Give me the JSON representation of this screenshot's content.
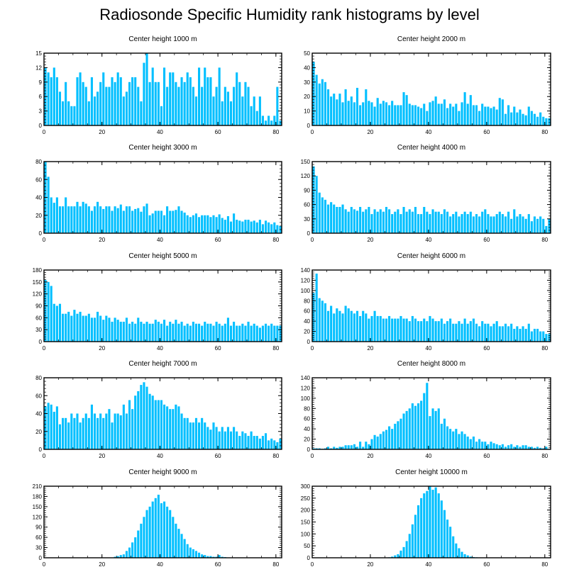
{
  "title": "Radiosonde Specific Humidity rank histograms by level",
  "colors": {
    "bar": "#00BFFF",
    "axis": "#000000",
    "background": "#FFFFFF"
  },
  "chart_data": [
    {
      "type": "bar",
      "title": "Center height 1000 m",
      "xticks": [
        0,
        20,
        40,
        60,
        80
      ],
      "yticks": [
        0,
        3,
        6,
        9,
        12,
        15
      ],
      "xlim": [
        0,
        82
      ],
      "ylim": [
        0,
        15
      ],
      "categories_start": 1,
      "values": [
        12,
        11,
        10,
        12,
        10,
        7,
        5,
        9,
        5,
        4,
        4,
        10,
        11,
        9,
        8,
        5,
        10,
        6,
        7,
        9,
        11,
        8,
        8,
        10,
        9,
        11,
        10,
        6,
        7,
        9,
        10,
        10,
        8,
        5,
        13,
        15,
        9,
        12,
        9,
        9,
        4,
        12,
        8,
        11,
        11,
        9,
        8,
        10,
        9,
        11,
        10,
        8,
        6,
        12,
        8,
        12,
        10,
        10,
        6,
        8,
        12,
        5,
        8,
        7,
        5,
        8,
        11,
        9,
        6,
        9,
        8,
        4,
        6,
        3,
        6,
        2,
        1,
        2,
        1,
        2,
        8,
        1
      ]
    },
    {
      "type": "bar",
      "title": "Center height 2000 m",
      "xticks": [
        0,
        20,
        40,
        60,
        80
      ],
      "yticks": [
        0,
        10,
        20,
        30,
        40,
        50
      ],
      "xlim": [
        0,
        82
      ],
      "ylim": [
        0,
        50
      ],
      "categories_start": 1,
      "values": [
        44,
        35,
        29,
        32,
        30,
        25,
        20,
        22,
        18,
        22,
        16,
        25,
        17,
        20,
        16,
        26,
        14,
        16,
        25,
        17,
        16,
        13,
        19,
        15,
        17,
        16,
        14,
        17,
        14,
        14,
        14,
        23,
        21,
        15,
        14,
        14,
        13,
        12,
        15,
        10,
        16,
        17,
        20,
        15,
        15,
        18,
        12,
        15,
        13,
        15,
        10,
        16,
        23,
        15,
        21,
        14,
        14,
        10,
        15,
        13,
        13,
        12,
        13,
        11,
        19,
        18,
        8,
        14,
        9,
        13,
        9,
        11,
        8,
        7,
        13,
        10,
        8,
        6,
        9,
        6,
        5,
        5
      ]
    },
    {
      "type": "bar",
      "title": "Center height 3000 m",
      "xticks": [
        0,
        20,
        40,
        60,
        80
      ],
      "yticks": [
        0,
        20,
        40,
        60,
        80
      ],
      "xlim": [
        0,
        82
      ],
      "ylim": [
        0,
        80
      ],
      "categories_start": 1,
      "values": [
        80,
        63,
        40,
        34,
        40,
        30,
        30,
        40,
        30,
        30,
        30,
        35,
        30,
        35,
        33,
        30,
        25,
        30,
        35,
        30,
        27,
        30,
        30,
        25,
        30,
        28,
        32,
        25,
        30,
        30,
        25,
        27,
        28,
        24,
        30,
        33,
        20,
        22,
        25,
        25,
        25,
        20,
        30,
        25,
        25,
        26,
        30,
        25,
        23,
        20,
        18,
        20,
        22,
        18,
        20,
        20,
        20,
        18,
        20,
        18,
        21,
        17,
        15,
        19,
        13,
        22,
        15,
        14,
        13,
        15,
        15,
        13,
        14,
        12,
        15,
        10,
        14,
        12,
        10,
        12,
        9,
        8
      ]
    },
    {
      "type": "bar",
      "title": "Center height 4000 m",
      "xticks": [
        0,
        20,
        40,
        60,
        80
      ],
      "yticks": [
        0,
        30,
        60,
        90,
        120,
        150
      ],
      "xlim": [
        0,
        82
      ],
      "ylim": [
        0,
        150
      ],
      "categories_start": 1,
      "values": [
        140,
        120,
        85,
        75,
        70,
        60,
        65,
        60,
        55,
        55,
        60,
        50,
        45,
        55,
        50,
        47,
        55,
        45,
        50,
        55,
        40,
        50,
        45,
        50,
        45,
        55,
        50,
        40,
        45,
        50,
        40,
        55,
        45,
        50,
        45,
        55,
        40,
        40,
        55,
        45,
        40,
        50,
        45,
        45,
        40,
        50,
        45,
        35,
        40,
        45,
        35,
        40,
        45,
        40,
        45,
        35,
        40,
        35,
        45,
        50,
        40,
        35,
        35,
        40,
        45,
        40,
        35,
        45,
        30,
        50,
        35,
        40,
        35,
        30,
        40,
        25,
        35,
        30,
        35,
        30,
        15,
        30
      ]
    },
    {
      "type": "bar",
      "title": "Center height 5000 m",
      "xticks": [
        0,
        20,
        40,
        60,
        80
      ],
      "yticks": [
        0,
        30,
        60,
        90,
        120,
        150,
        180
      ],
      "xlim": [
        0,
        82
      ],
      "ylim": [
        0,
        180
      ],
      "categories_start": 1,
      "values": [
        155,
        150,
        140,
        95,
        90,
        95,
        70,
        70,
        75,
        65,
        80,
        70,
        75,
        65,
        65,
        70,
        60,
        60,
        75,
        65,
        55,
        65,
        60,
        50,
        60,
        55,
        50,
        50,
        60,
        45,
        50,
        45,
        60,
        50,
        45,
        50,
        45,
        45,
        55,
        50,
        45,
        55,
        40,
        50,
        45,
        55,
        45,
        50,
        40,
        45,
        40,
        50,
        45,
        45,
        40,
        50,
        45,
        45,
        40,
        50,
        45,
        40,
        45,
        60,
        40,
        50,
        40,
        40,
        45,
        40,
        50,
        40,
        45,
        40,
        35,
        40,
        45,
        40,
        45,
        40,
        40,
        40
      ]
    },
    {
      "type": "bar",
      "title": "Center height 6000 m",
      "xticks": [
        0,
        20,
        40,
        60,
        80
      ],
      "yticks": [
        0,
        20,
        40,
        60,
        80,
        100,
        120,
        140
      ],
      "xlim": [
        0,
        82
      ],
      "ylim": [
        0,
        140
      ],
      "categories_start": 1,
      "values": [
        95,
        133,
        85,
        80,
        75,
        60,
        70,
        55,
        65,
        60,
        55,
        70,
        65,
        60,
        55,
        60,
        50,
        60,
        55,
        45,
        50,
        60,
        50,
        50,
        45,
        45,
        50,
        45,
        45,
        45,
        50,
        45,
        45,
        40,
        50,
        45,
        40,
        40,
        45,
        40,
        50,
        45,
        40,
        40,
        45,
        35,
        40,
        45,
        35,
        35,
        40,
        35,
        45,
        35,
        40,
        45,
        35,
        30,
        40,
        35,
        35,
        30,
        35,
        40,
        30,
        30,
        35,
        30,
        35,
        25,
        30,
        25,
        30,
        25,
        35,
        20,
        25,
        25,
        20,
        20,
        15,
        15
      ]
    },
    {
      "type": "bar",
      "title": "Center height 7000 m",
      "xticks": [
        0,
        20,
        40,
        60,
        80
      ],
      "yticks": [
        0,
        20,
        40,
        60,
        80
      ],
      "xlim": [
        0,
        82
      ],
      "ylim": [
        0,
        80
      ],
      "categories_start": 1,
      "values": [
        48,
        52,
        50,
        42,
        48,
        28,
        35,
        35,
        30,
        40,
        35,
        40,
        30,
        35,
        40,
        35,
        50,
        40,
        35,
        40,
        35,
        40,
        45,
        30,
        40,
        40,
        38,
        50,
        40,
        55,
        45,
        60,
        65,
        72,
        75,
        70,
        62,
        60,
        55,
        55,
        55,
        50,
        48,
        45,
        45,
        50,
        48,
        40,
        35,
        35,
        30,
        30,
        35,
        30,
        35,
        30,
        25,
        22,
        30,
        25,
        20,
        25,
        20,
        25,
        20,
        25,
        20,
        15,
        20,
        18,
        15,
        20,
        15,
        15,
        12,
        15,
        18,
        10,
        12,
        10,
        8,
        12
      ]
    },
    {
      "type": "bar",
      "title": "Center height 8000 m",
      "xticks": [
        0,
        20,
        40,
        60,
        80
      ],
      "yticks": [
        0,
        20,
        40,
        60,
        80,
        100,
        120,
        140
      ],
      "xlim": [
        0,
        82
      ],
      "ylim": [
        0,
        140
      ],
      "categories_start": 1,
      "values": [
        2,
        2,
        2,
        1,
        2,
        5,
        2,
        5,
        3,
        5,
        5,
        8,
        8,
        8,
        10,
        5,
        15,
        5,
        15,
        10,
        20,
        28,
        25,
        30,
        35,
        38,
        45,
        40,
        50,
        55,
        60,
        70,
        75,
        80,
        90,
        85,
        90,
        95,
        110,
        130,
        65,
        80,
        75,
        80,
        50,
        60,
        45,
        40,
        35,
        40,
        30,
        35,
        30,
        25,
        20,
        25,
        15,
        20,
        15,
        15,
        10,
        15,
        12,
        10,
        8,
        10,
        5,
        8,
        10,
        5,
        8,
        5,
        8,
        8,
        5,
        5,
        3,
        5,
        3,
        2,
        5,
        1
      ]
    },
    {
      "type": "bar",
      "title": "Center height 9000 m",
      "xticks": [
        0,
        20,
        40,
        60,
        80
      ],
      "yticks": [
        0,
        30,
        60,
        90,
        120,
        150,
        180,
        210
      ],
      "xlim": [
        0,
        82
      ],
      "ylim": [
        0,
        210
      ],
      "categories_start": 1,
      "values": [
        0,
        0,
        0,
        0,
        0,
        0,
        0,
        0,
        0,
        0,
        0,
        0,
        0,
        0,
        0,
        0,
        0,
        0,
        0,
        0,
        0,
        0,
        0,
        0,
        3,
        5,
        8,
        10,
        20,
        30,
        45,
        60,
        80,
        100,
        120,
        140,
        150,
        165,
        175,
        185,
        160,
        165,
        150,
        140,
        120,
        100,
        85,
        70,
        55,
        40,
        30,
        25,
        20,
        15,
        10,
        8,
        5,
        5,
        3,
        3,
        8,
        3,
        2,
        1,
        1,
        0,
        0,
        0,
        0,
        0,
        0,
        0,
        0,
        0,
        0,
        0,
        0,
        0,
        0,
        0,
        0,
        0
      ]
    },
    {
      "type": "bar",
      "title": "Center height 10000 m",
      "xticks": [
        0,
        20,
        40,
        60,
        80
      ],
      "yticks": [
        0,
        50,
        100,
        150,
        200,
        250,
        300
      ],
      "xlim": [
        0,
        82
      ],
      "ylim": [
        0,
        300
      ],
      "categories_start": 1,
      "values": [
        0,
        0,
        0,
        0,
        0,
        0,
        0,
        0,
        0,
        0,
        0,
        0,
        0,
        0,
        0,
        0,
        0,
        0,
        0,
        0,
        0,
        0,
        0,
        0,
        0,
        1,
        2,
        5,
        10,
        15,
        30,
        45,
        70,
        100,
        140,
        180,
        220,
        250,
        270,
        280,
        300,
        285,
        295,
        270,
        240,
        200,
        160,
        130,
        90,
        60,
        40,
        25,
        15,
        10,
        5,
        3,
        2,
        1,
        1,
        0,
        0,
        0,
        0,
        0,
        0,
        0,
        0,
        0,
        0,
        0,
        0,
        0,
        0,
        0,
        0,
        0,
        0,
        0,
        0,
        0,
        0,
        0
      ]
    }
  ]
}
